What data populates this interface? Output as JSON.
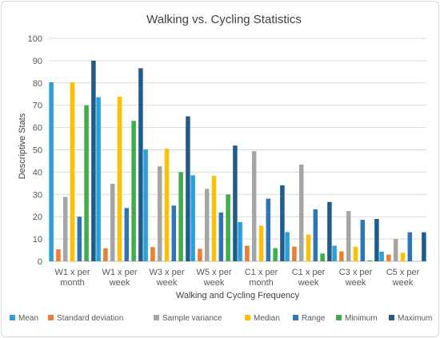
{
  "chart_data": {
    "type": "bar",
    "title": "Walking vs. Cycling Statistics",
    "xlabel": "Walking and Cycling Frequency",
    "ylabel": "Descriptive Stats",
    "ylim": [
      0,
      100
    ],
    "yticks": [
      0,
      10,
      20,
      30,
      40,
      50,
      60,
      70,
      80,
      90,
      100
    ],
    "grid": true,
    "legend_position": "bottom",
    "categories": [
      [
        "W1 x per",
        "month"
      ],
      [
        "W1 x per",
        "week"
      ],
      [
        "W3 x per",
        "week"
      ],
      [
        "W5 x per",
        "week"
      ],
      [
        "C1 x per",
        "month"
      ],
      [
        "C1 x per",
        "week"
      ],
      [
        "C3 x per",
        "week"
      ],
      [
        "C5 x per",
        "week"
      ]
    ],
    "series": [
      {
        "name": "Mean",
        "color": "#2a9fd8",
        "values": [
          80.3,
          73.6,
          50.2,
          38.6,
          17.6,
          13.1,
          7.0,
          4.3
        ]
      },
      {
        "name": "Standard deviation",
        "color": "#ed7d31",
        "values": [
          5.4,
          5.8,
          6.4,
          5.6,
          7.0,
          6.6,
          4.4,
          3.0
        ]
      },
      {
        "name": "Sample variance",
        "color": "#a5a5a5",
        "values": [
          28.9,
          34.8,
          42.6,
          32.5,
          49.4,
          43.4,
          22.5,
          10.0
        ]
      },
      {
        "name": "Median",
        "color": "#ffc000",
        "values": [
          80.3,
          73.8,
          50.5,
          38.3,
          16.0,
          12.0,
          6.5,
          3.8
        ]
      },
      {
        "name": "Range",
        "color": "#2e75b6",
        "values": [
          20.0,
          23.9,
          25.0,
          21.9,
          28.1,
          23.3,
          18.6,
          13.0
        ]
      },
      {
        "name": "Minimum",
        "color": "#3fae49",
        "values": [
          70.0,
          63.0,
          40.0,
          30.0,
          5.9,
          3.5,
          0.4,
          0.0
        ]
      },
      {
        "name": "Maximum",
        "color": "#1f5c8a",
        "values": [
          90.0,
          86.6,
          65.0,
          51.9,
          34.1,
          26.6,
          19.0,
          13.0
        ]
      }
    ]
  }
}
